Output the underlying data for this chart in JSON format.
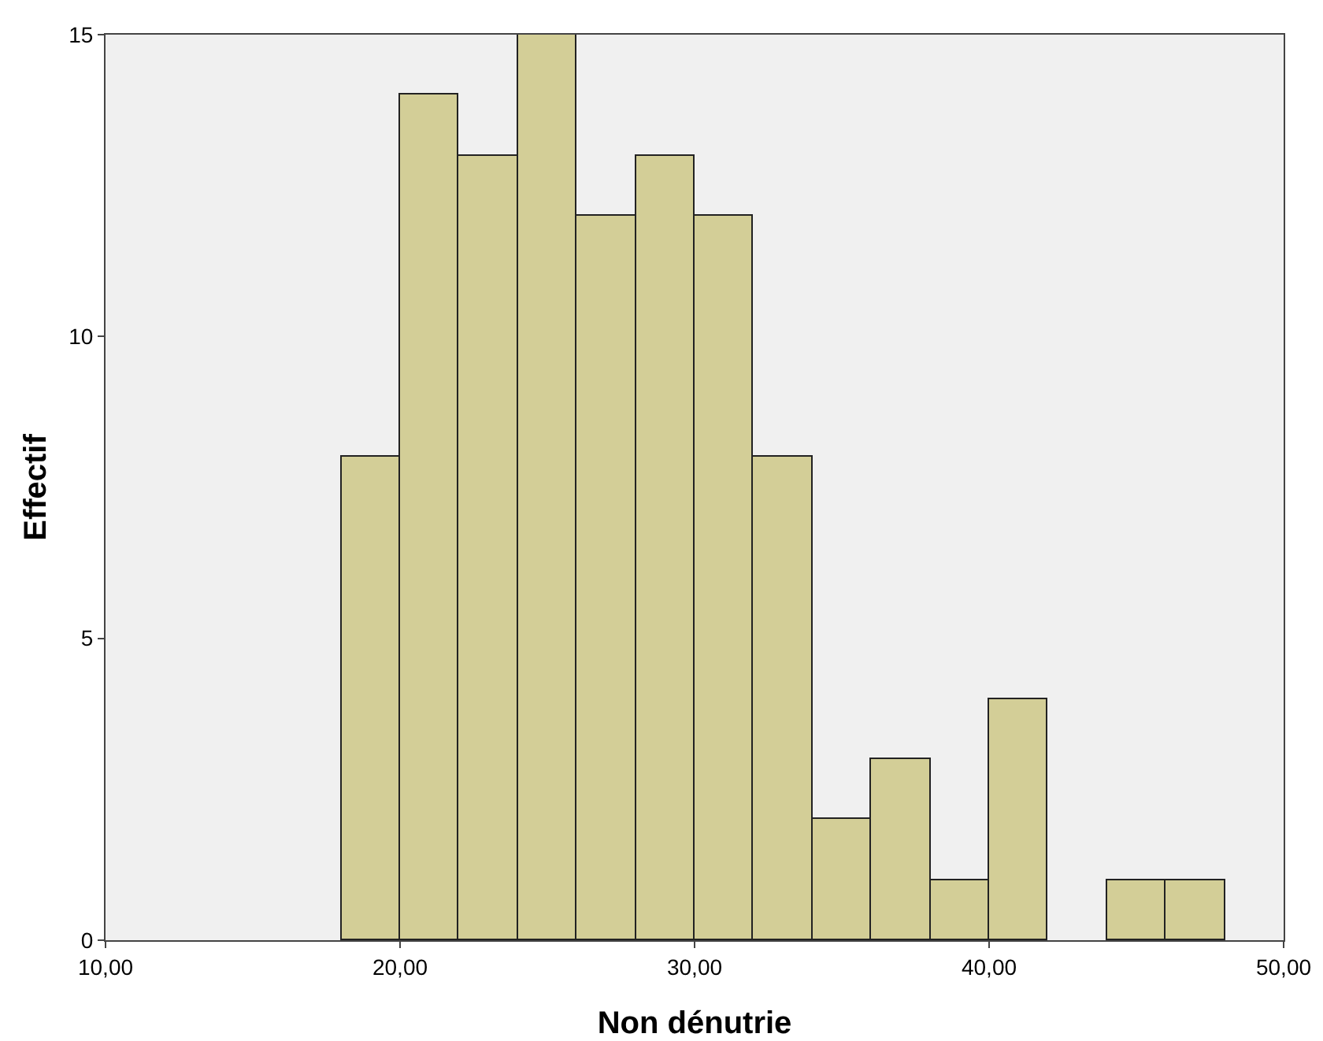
{
  "chart_data": {
    "type": "histogram",
    "xlabel": "Non dénutrie",
    "ylabel": "Effectif",
    "bins": [
      18,
      20,
      22,
      24,
      26,
      28,
      30,
      32,
      34,
      36,
      38,
      40,
      42,
      44,
      46,
      48
    ],
    "values": [
      8,
      14,
      13,
      15,
      12,
      13,
      12,
      8,
      2,
      3,
      1,
      4,
      0,
      1,
      1
    ],
    "color": "#d3ce97",
    "xlim": [
      10,
      50
    ],
    "xticks": [
      {
        "value": 10,
        "label": "10,00"
      },
      {
        "value": 20,
        "label": "20,00"
      },
      {
        "value": 30,
        "label": "30,00"
      },
      {
        "value": 40,
        "label": "40,00"
      },
      {
        "value": 50,
        "label": "50,00"
      }
    ],
    "ylim": [
      0,
      15
    ],
    "yticks": [
      0,
      5,
      10,
      15
    ],
    "grid": false
  }
}
